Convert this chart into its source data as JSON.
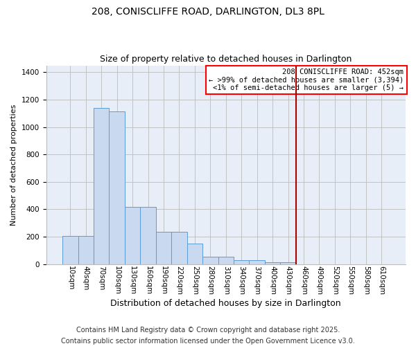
{
  "title": "208, CONISCLIFFE ROAD, DARLINGTON, DL3 8PL",
  "subtitle": "Size of property relative to detached houses in Darlington",
  "xlabel": "Distribution of detached houses by size in Darlington",
  "ylabel": "Number of detached properties",
  "bar_color": "#c8d9f0",
  "bar_edge_color": "#5b9bd5",
  "background_color": "#e8eef8",
  "grid_color": "#bbbbbb",
  "categories": [
    "10sqm",
    "40sqm",
    "70sqm",
    "100sqm",
    "130sqm",
    "160sqm",
    "190sqm",
    "220sqm",
    "250sqm",
    "280sqm",
    "310sqm",
    "340sqm",
    "370sqm",
    "400sqm",
    "430sqm",
    "460sqm",
    "490sqm",
    "520sqm",
    "550sqm",
    "580sqm",
    "610sqm"
  ],
  "heights": [
    207,
    207,
    1140,
    1115,
    420,
    420,
    237,
    237,
    150,
    55,
    55,
    27,
    27,
    13,
    13,
    0,
    0,
    0,
    0,
    0,
    0
  ],
  "ylim": [
    0,
    1450
  ],
  "yticks": [
    0,
    200,
    400,
    600,
    800,
    1000,
    1200,
    1400
  ],
  "annotation_line1": "208 CONISCLIFFE ROAD: 452sqm",
  "annotation_line2": "← >99% of detached houses are smaller (3,394)",
  "annotation_line3": "<1% of semi-detached houses are larger (5) →",
  "red_line_index": 15,
  "footer1": "Contains HM Land Registry data © Crown copyright and database right 2025.",
  "footer2": "Contains public sector information licensed under the Open Government Licence v3.0.",
  "title_fontsize": 10,
  "subtitle_fontsize": 9,
  "xlabel_fontsize": 9,
  "ylabel_fontsize": 8,
  "tick_fontsize": 7.5,
  "annotation_fontsize": 7.5,
  "footer_fontsize": 7
}
